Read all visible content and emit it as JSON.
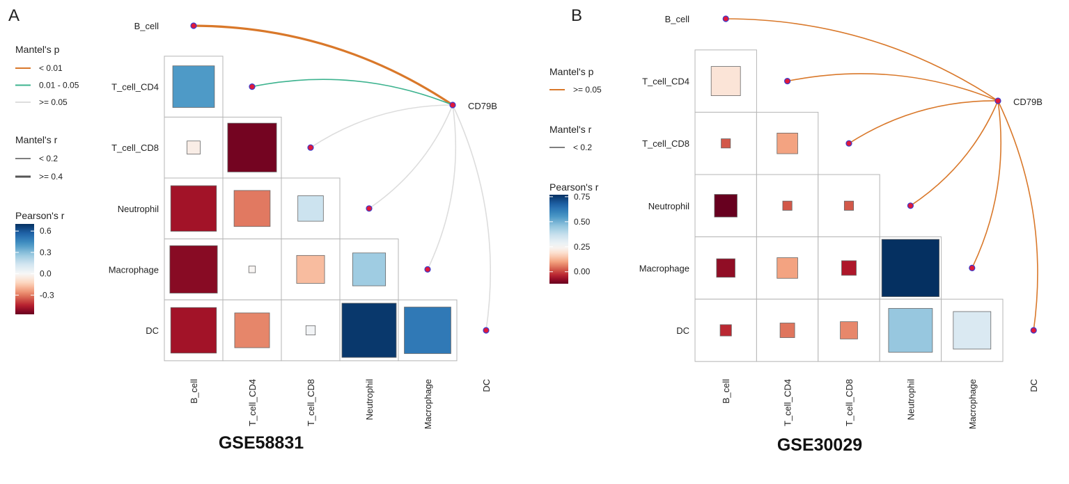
{
  "chart_data": [
    {
      "type": "heatmap",
      "panel_label": "A",
      "title": "GSE58831",
      "variables": [
        "B_cell",
        "T_cell_CD4",
        "T_cell_CD8",
        "Neutrophil",
        "Macrophage",
        "DC"
      ],
      "target": "CD79B",
      "pearson_r": [
        {
          "row": "T_cell_CD4",
          "col": "B_cell",
          "r": 0.4
        },
        {
          "row": "T_cell_CD8",
          "col": "B_cell",
          "r": -0.04
        },
        {
          "row": "T_cell_CD8",
          "col": "T_cell_CD4",
          "r": -0.55
        },
        {
          "row": "Neutrophil",
          "col": "B_cell",
          "r": -0.48
        },
        {
          "row": "Neutrophil",
          "col": "T_cell_CD4",
          "r": -0.3
        },
        {
          "row": "Neutrophil",
          "col": "T_cell_CD8",
          "r": 0.15
        },
        {
          "row": "Macrophage",
          "col": "B_cell",
          "r": -0.52
        },
        {
          "row": "Macrophage",
          "col": "T_cell_CD4",
          "r": -0.01
        },
        {
          "row": "Macrophage",
          "col": "T_cell_CD8",
          "r": -0.18
        },
        {
          "row": "Macrophage",
          "col": "Neutrophil",
          "r": 0.25
        },
        {
          "row": "DC",
          "col": "B_cell",
          "r": -0.48
        },
        {
          "row": "DC",
          "col": "T_cell_CD4",
          "r": -0.28
        },
        {
          "row": "DC",
          "col": "T_cell_CD8",
          "r": 0.02
        },
        {
          "row": "DC",
          "col": "Neutrophil",
          "r": 0.68
        },
        {
          "row": "DC",
          "col": "Macrophage",
          "r": 0.5
        }
      ],
      "mantel": [
        {
          "var": "B_cell",
          "p": "< 0.01",
          "r": ">= 0.4"
        },
        {
          "var": "T_cell_CD4",
          "p": "0.01 - 0.05",
          "r": "< 0.2"
        },
        {
          "var": "T_cell_CD8",
          "p": ">= 0.05",
          "r": "< 0.2"
        },
        {
          "var": "Neutrophil",
          "p": ">= 0.05",
          "r": "< 0.2"
        },
        {
          "var": "Macrophage",
          "p": ">= 0.05",
          "r": "< 0.2"
        },
        {
          "var": "DC",
          "p": ">= 0.05",
          "r": "< 0.2"
        }
      ],
      "legend": {
        "mantel_p_title": "Mantel's p",
        "mantel_p": [
          {
            "label": "< 0.01",
            "color": "#D9782A"
          },
          {
            "label": "0.01 - 0.05",
            "color": "#3DB38F"
          },
          {
            "label": ">= 0.05",
            "color": "#DDDDDD"
          }
        ],
        "mantel_r_title": "Mantel's r",
        "mantel_r": [
          {
            "label": "< 0.2"
          },
          {
            "label": ">= 0.4"
          }
        ],
        "pearson_title": "Pearson's r",
        "pearson_ticks": [
          "0.6",
          "0.3",
          "0.0",
          "-0.3"
        ],
        "pearson_tick_values": [
          0.6,
          0.3,
          0.0,
          -0.3
        ],
        "color_range": [
          -0.57,
          0.7
        ],
        "color_mid": 0.0
      }
    },
    {
      "type": "heatmap",
      "panel_label": "B",
      "title": "GSE30029",
      "variables": [
        "B_cell",
        "T_cell_CD4",
        "T_cell_CD8",
        "Neutrophil",
        "Macrophage",
        "DC"
      ],
      "target": "CD79B",
      "pearson_r": [
        {
          "row": "T_cell_CD4",
          "col": "B_cell",
          "r": 0.2
        },
        {
          "row": "T_cell_CD8",
          "col": "B_cell",
          "r": 0.02
        },
        {
          "row": "T_cell_CD8",
          "col": "T_cell_CD4",
          "r": 0.1
        },
        {
          "row": "Neutrophil",
          "col": "B_cell",
          "r": -0.12
        },
        {
          "row": "Neutrophil",
          "col": "T_cell_CD4",
          "r": 0.02
        },
        {
          "row": "Neutrophil",
          "col": "T_cell_CD8",
          "r": 0.02
        },
        {
          "row": "Macrophage",
          "col": "B_cell",
          "r": -0.08
        },
        {
          "row": "Macrophage",
          "col": "T_cell_CD4",
          "r": 0.1
        },
        {
          "row": "Macrophage",
          "col": "T_cell_CD8",
          "r": -0.05
        },
        {
          "row": "Macrophage",
          "col": "Neutrophil",
          "r": 0.77
        },
        {
          "row": "DC",
          "col": "B_cell",
          "r": -0.03
        },
        {
          "row": "DC",
          "col": "T_cell_CD4",
          "r": 0.05
        },
        {
          "row": "DC",
          "col": "T_cell_CD8",
          "r": 0.07
        },
        {
          "row": "DC",
          "col": "Neutrophil",
          "r": 0.45
        },
        {
          "row": "DC",
          "col": "Macrophage",
          "r": 0.33
        }
      ],
      "mantel": [
        {
          "var": "B_cell",
          "p": ">= 0.05",
          "r": "< 0.2"
        },
        {
          "var": "T_cell_CD4",
          "p": ">= 0.05",
          "r": "< 0.2"
        },
        {
          "var": "T_cell_CD8",
          "p": ">= 0.05",
          "r": "< 0.2"
        },
        {
          "var": "Neutrophil",
          "p": ">= 0.05",
          "r": "< 0.2"
        },
        {
          "var": "Macrophage",
          "p": ">= 0.05",
          "r": "< 0.2"
        },
        {
          "var": "DC",
          "p": ">= 0.05",
          "r": "< 0.2"
        }
      ],
      "legend": {
        "mantel_p_title": "Mantel's p",
        "mantel_p": [
          {
            "label": ">= 0.05",
            "color": "#D9782A"
          }
        ],
        "mantel_r_title": "Mantel's r",
        "mantel_r": [
          {
            "label": "< 0.2"
          }
        ],
        "pearson_title": "Pearson's r",
        "pearson_ticks": [
          "0.75",
          "0.50",
          "0.25",
          "0.00"
        ],
        "pearson_tick_values": [
          0.75,
          0.5,
          0.25,
          0.0
        ],
        "color_range": [
          -0.12,
          0.77
        ],
        "color_mid": 0.25
      }
    }
  ]
}
